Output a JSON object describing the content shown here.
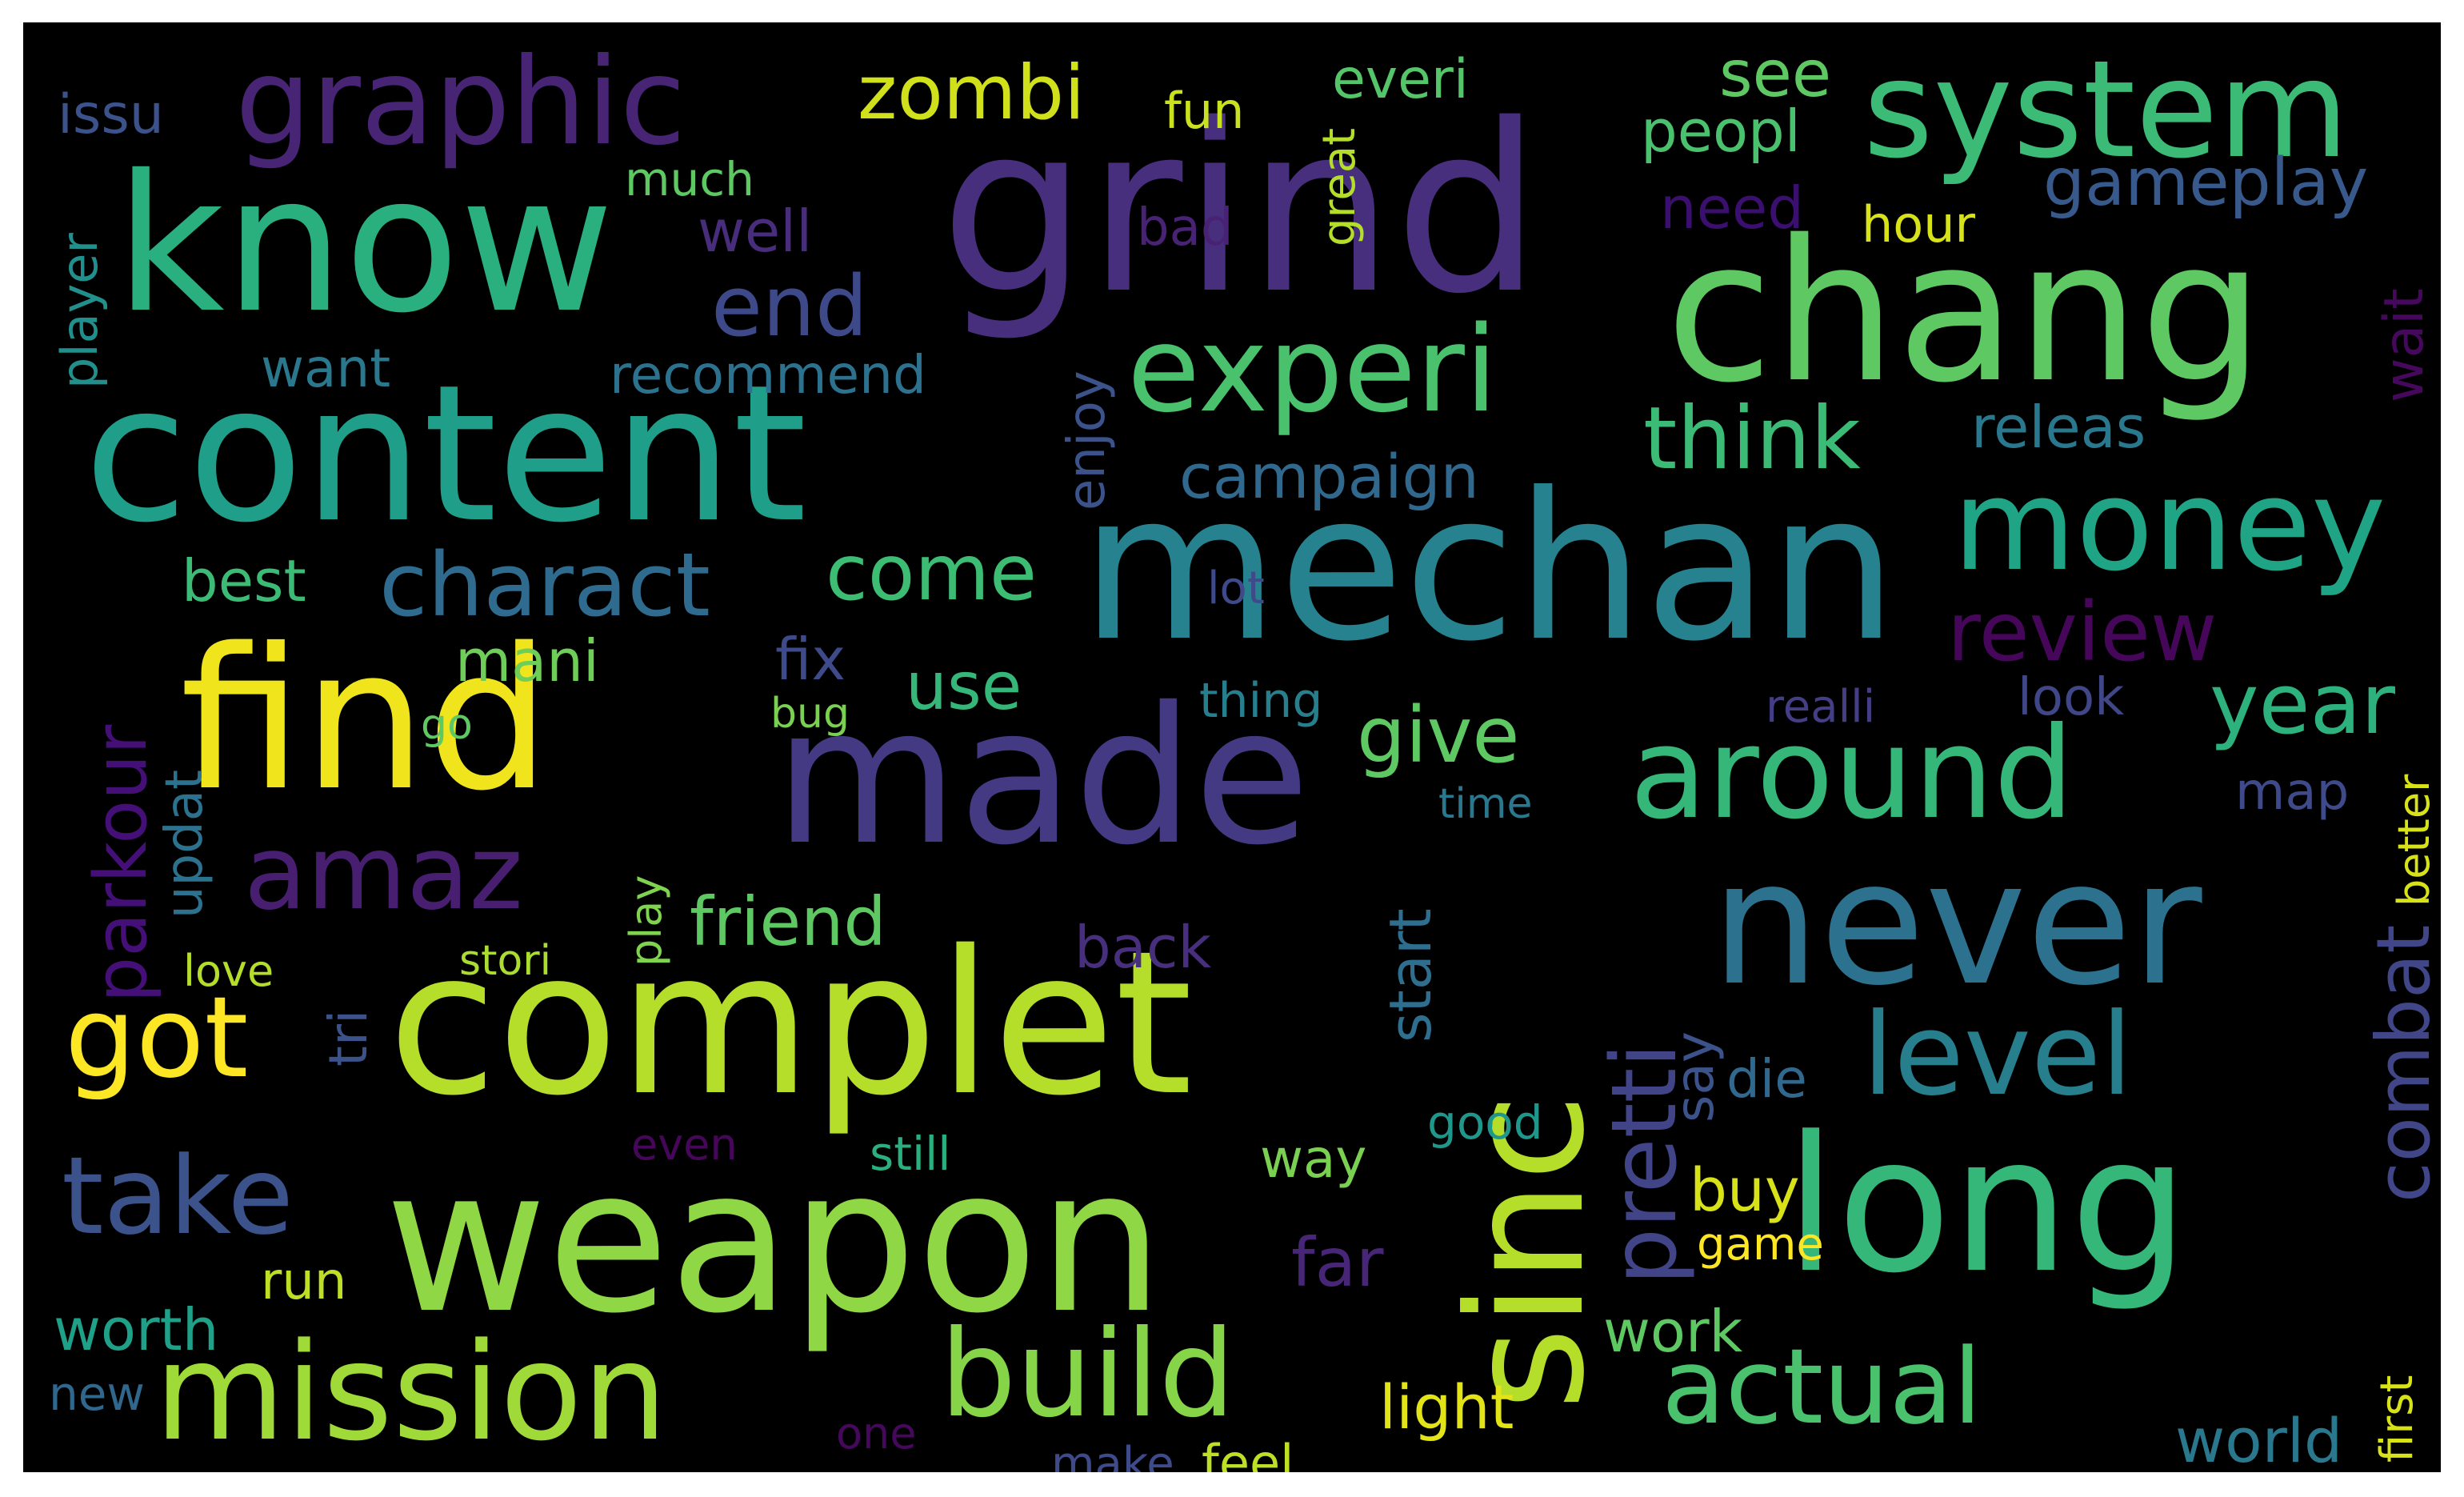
{
  "words": [
    {
      "text": "grind",
      "color": "#472f7d"
    },
    {
      "text": "chang",
      "color": "#5ec962"
    },
    {
      "text": "mechan",
      "color": "#26828e"
    },
    {
      "text": "content",
      "color": "#1f9e89"
    },
    {
      "text": "know",
      "color": "#2ab07f"
    },
    {
      "text": "find",
      "color": "#f0e51c"
    },
    {
      "text": "made",
      "color": "#443983"
    },
    {
      "text": "complet",
      "color": "#b5de2b"
    },
    {
      "text": "weapon",
      "color": "#8fd744"
    },
    {
      "text": "sinc",
      "color": "#b5de2b"
    },
    {
      "text": "never",
      "color": "#2c728e"
    },
    {
      "text": "long",
      "color": "#35b779"
    },
    {
      "text": "system",
      "color": "#3bbb75"
    },
    {
      "text": "graphic",
      "color": "#482475"
    },
    {
      "text": "mission",
      "color": "#a0da39"
    },
    {
      "text": "money",
      "color": "#20a486"
    },
    {
      "text": "experi",
      "color": "#4ac16d"
    },
    {
      "text": "around",
      "color": "#35b779"
    },
    {
      "text": "level",
      "color": "#277f8e"
    },
    {
      "text": "build",
      "color": "#86d549"
    },
    {
      "text": "actual",
      "color": "#4ac16d"
    },
    {
      "text": "amaz",
      "color": "#481f70"
    },
    {
      "text": "take",
      "color": "#3b528b"
    },
    {
      "text": "got",
      "color": "#fde725"
    },
    {
      "text": "zombi",
      "color": "#d0e11c"
    },
    {
      "text": "think",
      "color": "#3bbb75"
    },
    {
      "text": "charact",
      "color": "#2f6b8e"
    },
    {
      "text": "review",
      "color": "#46075a"
    },
    {
      "text": "come",
      "color": "#3dbc74"
    },
    {
      "text": "end",
      "color": "#3e4989"
    },
    {
      "text": "give",
      "color": "#5ec962"
    },
    {
      "text": "year",
      "color": "#2db27d"
    },
    {
      "text": "combat",
      "color": "#404688"
    },
    {
      "text": "pretti",
      "color": "#414487"
    },
    {
      "text": "parkour",
      "color": "#440f76"
    },
    {
      "text": "friend",
      "color": "#5ec962"
    },
    {
      "text": "gameplay",
      "color": "#38598c"
    },
    {
      "text": "releas",
      "color": "#2a788e"
    },
    {
      "text": "campaign",
      "color": "#31688e"
    },
    {
      "text": "see",
      "color": "#5ec962"
    },
    {
      "text": "peopl",
      "color": "#4ac16d"
    },
    {
      "text": "everi",
      "color": "#54c568"
    },
    {
      "text": "issu",
      "color": "#3b528b"
    },
    {
      "text": "use",
      "color": "#35b779"
    },
    {
      "text": "mani",
      "color": "#6ece58"
    },
    {
      "text": "fix",
      "color": "#3e4a89"
    },
    {
      "text": "well",
      "color": "#472d7b"
    },
    {
      "text": "want",
      "color": "#2a788e"
    },
    {
      "text": "recommend",
      "color": "#2c728e"
    },
    {
      "text": "best",
      "color": "#3bbb75"
    },
    {
      "text": "wait",
      "color": "#46085c"
    },
    {
      "text": "need",
      "color": "#3a0f6f"
    },
    {
      "text": "hour",
      "color": "#d8e219"
    },
    {
      "text": "bad",
      "color": "#482374"
    },
    {
      "text": "fun",
      "color": "#cae11f"
    },
    {
      "text": "much",
      "color": "#5ec962"
    },
    {
      "text": "great",
      "color": "#b5de2b"
    },
    {
      "text": "player",
      "color": "#21908d"
    },
    {
      "text": "enjoy",
      "color": "#3b528b"
    },
    {
      "text": "lot",
      "color": "#3e4a89"
    },
    {
      "text": "look",
      "color": "#3f4788"
    },
    {
      "text": "realli",
      "color": "#433e85"
    },
    {
      "text": "map",
      "color": "#3e4a89"
    },
    {
      "text": "time",
      "color": "#2a788e"
    },
    {
      "text": "thing",
      "color": "#277f8e"
    },
    {
      "text": "bug",
      "color": "#7ad151"
    },
    {
      "text": "go",
      "color": "#5ec962"
    },
    {
      "text": "updat",
      "color": "#2c728e"
    },
    {
      "text": "love",
      "color": "#b5de2b"
    },
    {
      "text": "stori",
      "color": "#aadc32"
    },
    {
      "text": "play",
      "color": "#7fd34e"
    },
    {
      "text": "tri",
      "color": "#3b528b"
    },
    {
      "text": "back",
      "color": "#472f7d"
    },
    {
      "text": "start",
      "color": "#2e6e8e"
    },
    {
      "text": "say",
      "color": "#3b528b"
    },
    {
      "text": "die",
      "color": "#31688e"
    },
    {
      "text": "good",
      "color": "#1f988b"
    },
    {
      "text": "buy",
      "color": "#d8e219"
    },
    {
      "text": "game",
      "color": "#fde725"
    },
    {
      "text": "way",
      "color": "#7ad151"
    },
    {
      "text": "still",
      "color": "#2ab07f"
    },
    {
      "text": "even",
      "color": "#46075a"
    },
    {
      "text": "far",
      "color": "#482677"
    },
    {
      "text": "run",
      "color": "#bddf26"
    },
    {
      "text": "worth",
      "color": "#1fa088"
    },
    {
      "text": "work",
      "color": "#5ec962"
    },
    {
      "text": "light",
      "color": "#e2e418"
    },
    {
      "text": "new",
      "color": "#30678d"
    },
    {
      "text": "one",
      "color": "#46085c"
    },
    {
      "text": "make",
      "color": "#3e4a89"
    },
    {
      "text": "feel",
      "color": "#bddf26"
    },
    {
      "text": "world",
      "color": "#2a788e"
    },
    {
      "text": "first",
      "color": "#d8e219"
    },
    {
      "text": "better",
      "color": "#d8e219"
    }
  ]
}
